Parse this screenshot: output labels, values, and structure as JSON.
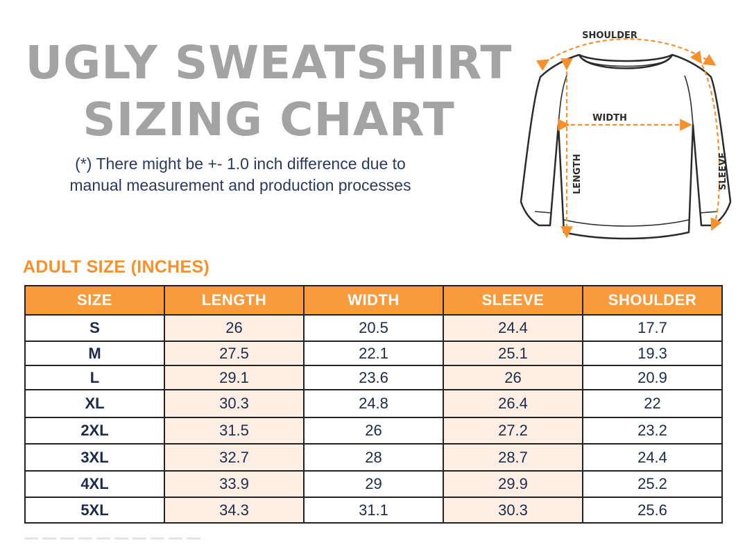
{
  "header": {
    "title_line1": "UGLY SWEATSHIRT",
    "title_line2": "SIZING CHART",
    "note_line1": "(*) There might be +- 1.0 inch difference due to",
    "note_line2": "manual measurement and production processes"
  },
  "diagram": {
    "labels": {
      "shoulder": "SHOULDER",
      "width": "WIDTH",
      "length": "LENGTH",
      "sleeve": "SLEEVE"
    },
    "icon": "sweatshirt-outline-icon",
    "arrow_color": "#f7902b"
  },
  "table": {
    "section_label": "ADULT SIZE (INCHES)",
    "header_color": "#f99a3c",
    "shade_color": "#fdeee3",
    "columns": [
      "SIZE",
      "LENGTH",
      "WIDTH",
      "SLEEVE",
      "SHOULDER"
    ],
    "rows": [
      [
        "S",
        "26",
        "20.5",
        "24.4",
        "17.7"
      ],
      [
        "M",
        "27.5",
        "22.1",
        "25.1",
        "19.3"
      ],
      [
        "L",
        "29.1",
        "23.6",
        "26",
        "20.9"
      ],
      [
        "XL",
        "30.3",
        "24.8",
        "26.4",
        "22"
      ],
      [
        "2XL",
        "31.5",
        "26",
        "27.2",
        "23.2"
      ],
      [
        "3XL",
        "32.7",
        "28",
        "28.7",
        "24.4"
      ],
      [
        "4XL",
        "33.9",
        "29",
        "29.9",
        "25.2"
      ],
      [
        "5XL",
        "34.3",
        "31.1",
        "30.3",
        "25.6"
      ]
    ]
  }
}
